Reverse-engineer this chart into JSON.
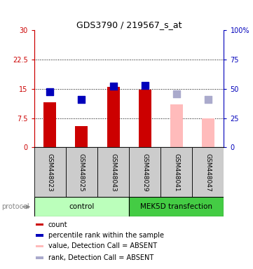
{
  "title": "GDS3790 / 219567_s_at",
  "samples": [
    "GSM448023",
    "GSM448025",
    "GSM448043",
    "GSM448029",
    "GSM448041",
    "GSM448047"
  ],
  "bar_values": [
    11.5,
    5.5,
    15.5,
    14.8,
    11.0,
    7.5
  ],
  "bar_colors": [
    "#cc0000",
    "#cc0000",
    "#cc0000",
    "#cc0000",
    "#ffbbbb",
    "#ffbbbb"
  ],
  "dot_values": [
    14.3,
    12.3,
    15.7,
    15.8,
    13.8,
    12.3
  ],
  "dot_colors": [
    "#0000bb",
    "#0000bb",
    "#0000bb",
    "#0000bb",
    "#aaaacc",
    "#aaaacc"
  ],
  "ylim_left": [
    0,
    30
  ],
  "ylim_right": [
    0,
    100
  ],
  "yticks_left": [
    0,
    7.5,
    15,
    22.5,
    30
  ],
  "yticks_right": [
    0,
    25,
    50,
    75,
    100
  ],
  "ytick_labels_left": [
    "0",
    "7.5",
    "15",
    "22.5",
    "30"
  ],
  "ytick_labels_right": [
    "0",
    "25",
    "50",
    "75",
    "100%"
  ],
  "hlines": [
    7.5,
    15.0,
    22.5
  ],
  "control_color": "#bbffbb",
  "mek_color": "#44cc44",
  "sample_box_color": "#cccccc",
  "legend_items": [
    {
      "color": "#cc0000",
      "label": "count"
    },
    {
      "color": "#0000bb",
      "label": "percentile rank within the sample"
    },
    {
      "color": "#ffbbbb",
      "label": "value, Detection Call = ABSENT"
    },
    {
      "color": "#aaaacc",
      "label": "rank, Detection Call = ABSENT"
    }
  ],
  "left_axis_color": "#cc0000",
  "right_axis_color": "#0000bb",
  "bar_width": 0.4,
  "dot_size": 45,
  "title_fontsize": 9,
  "tick_fontsize": 7,
  "label_fontsize": 7,
  "legend_fontsize": 7
}
